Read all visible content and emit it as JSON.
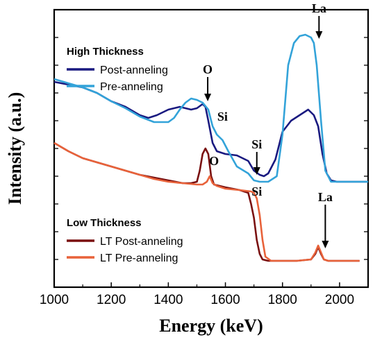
{
  "chart_data": {
    "type": "line",
    "xlabel": "Energy (keV)",
    "ylabel": "Intensity (a.u.)",
    "xlim": [
      1000,
      2100
    ],
    "ylim": [
      0,
      1
    ],
    "xticks": [
      "1000",
      "1200",
      "1400",
      "1600",
      "1800",
      "2000"
    ],
    "xtick_values": [
      1000,
      1200,
      1400,
      1600,
      1800,
      2000
    ],
    "grid": false,
    "groups": [
      {
        "title": "High Thickness",
        "series": [
          {
            "name": "Post-anneling",
            "color": "#1a1a80",
            "x": [
              1000,
              1050,
              1100,
              1150,
              1200,
              1250,
              1300,
              1330,
              1360,
              1400,
              1440,
              1480,
              1500,
              1520,
              1530,
              1540,
              1555,
              1570,
              1600,
              1640,
              1680,
              1700,
              1720,
              1735,
              1750,
              1775,
              1800,
              1830,
              1860,
              1890,
              1910,
              1925,
              1940,
              1955,
              1970,
              1990,
              2020,
              2060,
              2100
            ],
            "y": [
              0.74,
              0.73,
              0.72,
              0.7,
              0.67,
              0.65,
              0.62,
              0.61,
              0.62,
              0.64,
              0.65,
              0.64,
              0.645,
              0.66,
              0.65,
              0.6,
              0.52,
              0.49,
              0.48,
              0.475,
              0.455,
              0.42,
              0.405,
              0.4,
              0.41,
              0.46,
              0.56,
              0.6,
              0.62,
              0.64,
              0.62,
              0.58,
              0.48,
              0.41,
              0.385,
              0.38,
              0.38,
              0.38,
              0.38
            ]
          },
          {
            "name": "Pre-anneling",
            "color": "#33a3d9",
            "x": [
              1000,
              1050,
              1100,
              1150,
              1200,
              1250,
              1300,
              1350,
              1400,
              1420,
              1440,
              1460,
              1480,
              1500,
              1520,
              1540,
              1555,
              1570,
              1590,
              1610,
              1640,
              1680,
              1700,
              1720,
              1750,
              1780,
              1800,
              1820,
              1840,
              1860,
              1880,
              1900,
              1910,
              1920,
              1935,
              1950,
              1970,
              2000,
              2050,
              2100
            ],
            "y": [
              0.75,
              0.735,
              0.72,
              0.7,
              0.67,
              0.645,
              0.615,
              0.595,
              0.595,
              0.61,
              0.64,
              0.665,
              0.68,
              0.675,
              0.665,
              0.64,
              0.58,
              0.55,
              0.53,
              0.49,
              0.435,
              0.41,
              0.385,
              0.38,
              0.38,
              0.4,
              0.55,
              0.8,
              0.88,
              0.905,
              0.91,
              0.9,
              0.88,
              0.8,
              0.6,
              0.42,
              0.38,
              0.38,
              0.38,
              0.38
            ]
          }
        ]
      },
      {
        "title": "Low Thickness",
        "series": [
          {
            "name": "LT Post-anneling",
            "color": "#7a1010",
            "x": [
              1000,
              1050,
              1100,
              1150,
              1200,
              1250,
              1300,
              1350,
              1400,
              1450,
              1480,
              1500,
              1510,
              1520,
              1530,
              1540,
              1550,
              1560,
              1600,
              1650,
              1680,
              1690,
              1700,
              1710,
              1720,
              1730,
              1750,
              1800,
              1850,
              1900,
              1915,
              1925,
              1935,
              1945,
              1960,
              2000,
              2050,
              2070
            ],
            "y": [
              0.52,
              0.49,
              0.465,
              0.45,
              0.435,
              0.42,
              0.405,
              0.395,
              0.385,
              0.375,
              0.375,
              0.38,
              0.42,
              0.48,
              0.5,
              0.48,
              0.4,
              0.37,
              0.36,
              0.35,
              0.34,
              0.3,
              0.25,
              0.17,
              0.12,
              0.1,
              0.095,
              0.095,
              0.095,
              0.1,
              0.12,
              0.145,
              0.12,
              0.1,
              0.095,
              0.095,
              0.095,
              0.095
            ]
          },
          {
            "name": "LT Pre-anneling",
            "color": "#e8623a",
            "x": [
              1000,
              1050,
              1100,
              1150,
              1200,
              1250,
              1300,
              1350,
              1400,
              1450,
              1500,
              1520,
              1535,
              1545,
              1555,
              1570,
              1600,
              1650,
              1690,
              1700,
              1710,
              1720,
              1730,
              1740,
              1760,
              1800,
              1850,
              1900,
              1915,
              1925,
              1935,
              1945,
              1960,
              2000,
              2050,
              2070
            ],
            "y": [
              0.52,
              0.49,
              0.465,
              0.45,
              0.435,
              0.42,
              0.405,
              0.39,
              0.38,
              0.375,
              0.37,
              0.37,
              0.38,
              0.4,
              0.375,
              0.365,
              0.355,
              0.35,
              0.345,
              0.34,
              0.32,
              0.26,
              0.17,
              0.11,
              0.095,
              0.095,
              0.095,
              0.1,
              0.125,
              0.15,
              0.125,
              0.1,
              0.095,
              0.095,
              0.095,
              0.095
            ]
          }
        ]
      }
    ],
    "annotations": [
      {
        "text": "O",
        "x": 1538,
        "y": 0.77,
        "arrow": true,
        "arrow_to": [
          1538,
          0.67
        ]
      },
      {
        "text": "Si",
        "x": 1590,
        "y": 0.6,
        "arrow": false
      },
      {
        "text": "Si",
        "x": 1710,
        "y": 0.5,
        "arrow": true,
        "arrow_to": [
          1710,
          0.405
        ]
      },
      {
        "text": "La",
        "x": 1928,
        "y": 0.99,
        "arrow": true,
        "arrow_to": [
          1928,
          0.895
        ]
      },
      {
        "text": "O",
        "x": 1560,
        "y": 0.44,
        "arrow": false
      },
      {
        "text": "Si",
        "x": 1710,
        "y": 0.33,
        "arrow": false
      },
      {
        "text": "La",
        "x": 1950,
        "y": 0.31,
        "arrow": true,
        "arrow_to": [
          1950,
          0.14
        ]
      }
    ]
  }
}
